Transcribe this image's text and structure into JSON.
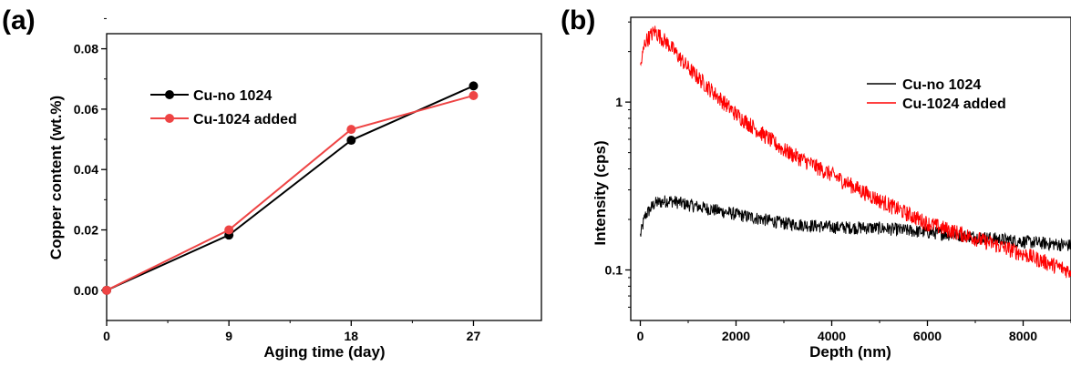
{
  "chart_data": [
    {
      "type": "line",
      "panel_label": "(a)",
      "xlabel": "Aging time (day)",
      "ylabel": "Copper content (wt.%)",
      "x": [
        0,
        9,
        18,
        27
      ],
      "xlim": [
        0,
        32
      ],
      "ylim": [
        -0.01,
        0.085
      ],
      "xticks": [
        "0",
        "9",
        "18",
        "27"
      ],
      "yticks": [
        "0.00",
        "0.02",
        "0.04",
        "0.06",
        "0.08"
      ],
      "series": [
        {
          "name": "Cu-no 1024",
          "color": "#000000",
          "values": [
            0.0,
            0.0183,
            0.0497,
            0.0677
          ]
        },
        {
          "name": "Cu-1024 added",
          "color": "#ee4444",
          "values": [
            0.0,
            0.02,
            0.0533,
            0.0645
          ]
        }
      ],
      "legend_position": "top-left",
      "grid": false
    },
    {
      "type": "line",
      "panel_label": "(b)",
      "xlabel": "Depth (nm)",
      "ylabel": "Intensity (cps)",
      "xlim": [
        -200,
        9000
      ],
      "ylim": [
        0.05,
        3.2
      ],
      "yscale": "log",
      "xticks": [
        "0",
        "2000",
        "4000",
        "6000",
        "8000"
      ],
      "yticks": [
        "0.1",
        "1"
      ],
      "series": [
        {
          "name": "Cu-no 1024",
          "color": "#000000",
          "x": [
            0,
            100,
            300,
            600,
            1000,
            2000,
            3000,
            4000,
            5000,
            6000,
            7000,
            8000,
            9000
          ],
          "values": [
            0.16,
            0.21,
            0.25,
            0.26,
            0.245,
            0.215,
            0.19,
            0.18,
            0.178,
            0.168,
            0.158,
            0.148,
            0.14
          ]
        },
        {
          "name": "Cu-1024 added",
          "color": "#ff0000",
          "x": [
            0,
            100,
            300,
            600,
            1000,
            2000,
            3000,
            4000,
            5000,
            6000,
            7000,
            8000,
            9000
          ],
          "values": [
            1.6,
            2.3,
            2.65,
            2.2,
            1.6,
            0.85,
            0.52,
            0.37,
            0.26,
            0.19,
            0.155,
            0.125,
            0.098
          ]
        }
      ],
      "legend_position": "top-right",
      "grid": false
    }
  ]
}
